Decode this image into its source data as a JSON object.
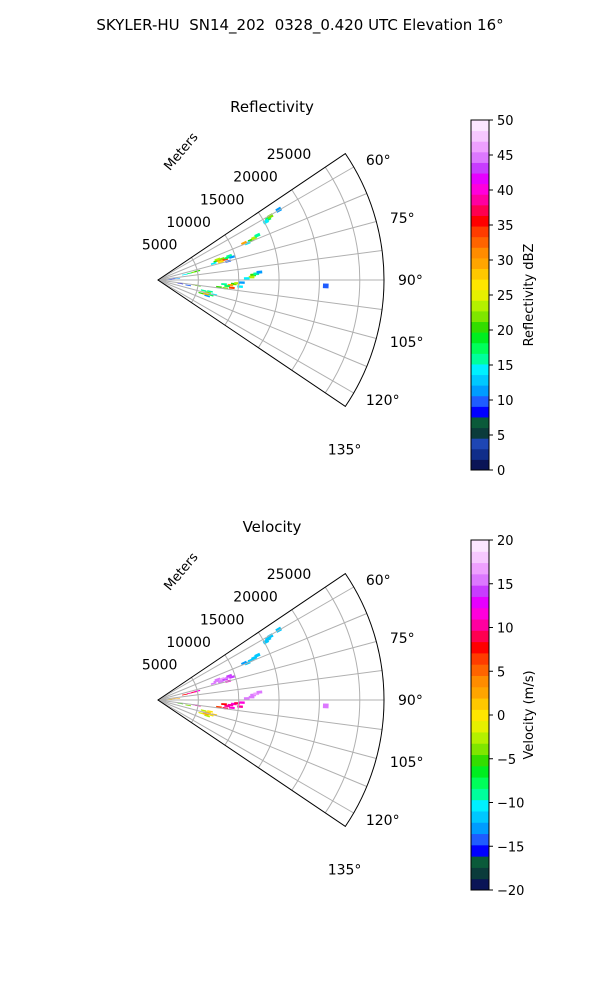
{
  "figure_title": "SKYLER-HU  SN14_202  0328_0.420 UTC Elevation 16°",
  "chart_data": [
    {
      "type": "polar-sector",
      "title": "Reflectivity",
      "radial_label": "Meters",
      "r_ticks": [
        "5000",
        "10000",
        "15000",
        "20000",
        "25000"
      ],
      "r_max": 28000,
      "azimuth_ticks": [
        "60°",
        "75°",
        "90°",
        "105°",
        "120°",
        "135°"
      ],
      "azimuth_range_deg": [
        56,
        124
      ],
      "colorbar": {
        "label": "Reflectivity dBZ",
        "range": [
          0,
          50
        ],
        "ticks": [
          "0",
          "5",
          "10",
          "15",
          "20",
          "25",
          "30",
          "35",
          "40",
          "45",
          "50"
        ],
        "colors": [
          "#0a1456",
          "#102e8a",
          "#1e46b4",
          "#0b3b3b",
          "#0a5a3a",
          "#0000ff",
          "#1f5cff",
          "#009cff",
          "#00c8ff",
          "#00f0ff",
          "#00ff9c",
          "#00ff5a",
          "#00ee20",
          "#33dd00",
          "#7fe600",
          "#b4f000",
          "#e6f000",
          "#ffe600",
          "#ffc800",
          "#ffa500",
          "#ff8c00",
          "#ff6400",
          "#ff3c00",
          "#ff0000",
          "#ff0050",
          "#ff00a0",
          "#ff00dc",
          "#e600ff",
          "#c83cff",
          "#dc78ff",
          "#eea0ff",
          "#f6c8ff",
          "#fbe6ff"
        ]
      },
      "cells": [
        {
          "az": 72.0,
          "r": 7600,
          "v": 20
        },
        {
          "az": 72.4,
          "r": 8000,
          "v": 30
        },
        {
          "az": 71.6,
          "r": 8300,
          "v": 22
        },
        {
          "az": 73.0,
          "r": 8700,
          "v": 34
        },
        {
          "az": 72.2,
          "r": 9000,
          "v": 18
        },
        {
          "az": 73.4,
          "r": 7200,
          "v": 14
        },
        {
          "az": 71.2,
          "r": 9300,
          "v": 16
        },
        {
          "az": 74.0,
          "r": 8100,
          "v": 26
        },
        {
          "az": 70.8,
          "r": 7800,
          "v": 24
        },
        {
          "az": 72.8,
          "r": 9600,
          "v": 12
        },
        {
          "az": 67.0,
          "r": 12500,
          "v": 20
        },
        {
          "az": 66.4,
          "r": 13000,
          "v": 24
        },
        {
          "az": 67.6,
          "r": 12000,
          "v": 14
        },
        {
          "az": 65.8,
          "r": 13500,
          "v": 16
        },
        {
          "az": 66.8,
          "r": 11600,
          "v": 30
        },
        {
          "az": 61.0,
          "r": 15600,
          "v": 18
        },
        {
          "az": 60.4,
          "r": 16000,
          "v": 22
        },
        {
          "az": 61.6,
          "r": 15200,
          "v": 14
        },
        {
          "az": 59.8,
          "r": 17300,
          "v": 12
        },
        {
          "az": 78.0,
          "r": 4000,
          "v": 18
        },
        {
          "az": 77.6,
          "r": 4600,
          "v": 22
        },
        {
          "az": 78.6,
          "r": 3400,
          "v": 14
        },
        {
          "az": 77.2,
          "r": 5000,
          "v": 20
        },
        {
          "az": 86.0,
          "r": 1800,
          "v": 8
        },
        {
          "az": 85.4,
          "r": 2400,
          "v": 12
        },
        {
          "az": 86.6,
          "r": 1400,
          "v": 10
        },
        {
          "az": 75.0,
          "r": 9000,
          "v": 10
        },
        {
          "az": 87.0,
          "r": 11800,
          "v": 20
        },
        {
          "az": 88.2,
          "r": 11600,
          "v": 24
        },
        {
          "az": 86.4,
          "r": 12200,
          "v": 16
        },
        {
          "az": 89.0,
          "r": 11000,
          "v": 14
        },
        {
          "az": 85.6,
          "r": 12600,
          "v": 12
        },
        {
          "az": 93.0,
          "r": 9400,
          "v": 20
        },
        {
          "az": 94.0,
          "r": 9000,
          "v": 30
        },
        {
          "az": 92.4,
          "r": 9800,
          "v": 24
        },
        {
          "az": 95.0,
          "r": 8600,
          "v": 18
        },
        {
          "az": 93.6,
          "r": 8200,
          "v": 16
        },
        {
          "az": 96.0,
          "r": 9200,
          "v": 34
        },
        {
          "az": 97.0,
          "r": 8400,
          "v": 22
        },
        {
          "az": 94.6,
          "r": 10200,
          "v": 14
        },
        {
          "az": 91.8,
          "r": 10400,
          "v": 12
        },
        {
          "az": 96.6,
          "r": 7600,
          "v": 20
        },
        {
          "az": 104.0,
          "r": 6400,
          "v": 22
        },
        {
          "az": 105.0,
          "r": 6000,
          "v": 24
        },
        {
          "az": 106.0,
          "r": 6800,
          "v": 18
        },
        {
          "az": 103.0,
          "r": 5800,
          "v": 16
        },
        {
          "az": 107.0,
          "r": 5600,
          "v": 20
        },
        {
          "az": 104.6,
          "r": 7200,
          "v": 14
        },
        {
          "az": 106.6,
          "r": 6200,
          "v": 30
        },
        {
          "az": 108.0,
          "r": 6400,
          "v": 12
        },
        {
          "az": 102.4,
          "r": 6600,
          "v": 16
        },
        {
          "az": 100.0,
          "r": 3800,
          "v": 10
        },
        {
          "az": 99.0,
          "r": 2800,
          "v": 8
        },
        {
          "az": 98.0,
          "r": 5000,
          "v": 20
        },
        {
          "az": 97.6,
          "r": 4600,
          "v": 24
        },
        {
          "az": 92.0,
          "r": 20800,
          "v": 10
        }
      ]
    },
    {
      "type": "polar-sector",
      "title": "Velocity",
      "radial_label": "Meters",
      "r_ticks": [
        "5000",
        "10000",
        "15000",
        "20000",
        "25000"
      ],
      "r_max": 28000,
      "azimuth_ticks": [
        "60°",
        "75°",
        "90°",
        "105°",
        "120°",
        "135°"
      ],
      "azimuth_range_deg": [
        56,
        124
      ],
      "colorbar": {
        "label": "Velocity (m/s)",
        "range": [
          -20,
          20
        ],
        "ticks": [
          "−20",
          "−15",
          "−10",
          "−5",
          "0",
          "5",
          "10",
          "15",
          "20"
        ],
        "colors": [
          "#0a1456",
          "#0b3b3b",
          "#0a5a3a",
          "#0000ff",
          "#1f5cff",
          "#009cff",
          "#00c8ff",
          "#00f0ff",
          "#00ff9c",
          "#00ff5a",
          "#00ee20",
          "#33dd00",
          "#7fe600",
          "#b4f000",
          "#e6f000",
          "#ffe600",
          "#ffc800",
          "#ffa500",
          "#ff8c00",
          "#ff6400",
          "#ff3c00",
          "#ff0000",
          "#ff0050",
          "#ff00a0",
          "#ff00dc",
          "#e600ff",
          "#c83cff",
          "#dc78ff",
          "#eea0ff",
          "#f6c8ff",
          "#fbe6ff"
        ]
      },
      "cells": [
        {
          "az": 72.0,
          "r": 7600,
          "v": 16
        },
        {
          "az": 72.4,
          "r": 8000,
          "v": 15
        },
        {
          "az": 71.6,
          "r": 8300,
          "v": 17
        },
        {
          "az": 73.0,
          "r": 8700,
          "v": 14
        },
        {
          "az": 72.2,
          "r": 9000,
          "v": 16
        },
        {
          "az": 73.4,
          "r": 7200,
          "v": 15
        },
        {
          "az": 71.2,
          "r": 9300,
          "v": 14
        },
        {
          "az": 74.0,
          "r": 8100,
          "v": 16
        },
        {
          "az": 70.8,
          "r": 7800,
          "v": 15
        },
        {
          "az": 72.8,
          "r": 9600,
          "v": 14
        },
        {
          "az": 67.0,
          "r": 12500,
          "v": -12
        },
        {
          "az": 66.4,
          "r": 13000,
          "v": -11
        },
        {
          "az": 67.6,
          "r": 12000,
          "v": -12
        },
        {
          "az": 65.8,
          "r": 13500,
          "v": -11
        },
        {
          "az": 66.8,
          "r": 11600,
          "v": -13
        },
        {
          "az": 61.0,
          "r": 15600,
          "v": -12
        },
        {
          "az": 60.4,
          "r": 16000,
          "v": -11
        },
        {
          "az": 61.6,
          "r": 15200,
          "v": -12
        },
        {
          "az": 59.8,
          "r": 17300,
          "v": -11
        },
        {
          "az": 78.0,
          "r": 4000,
          "v": 10
        },
        {
          "az": 77.6,
          "r": 4600,
          "v": 9
        },
        {
          "az": 78.6,
          "r": 3400,
          "v": 8
        },
        {
          "az": 77.2,
          "r": 5000,
          "v": 11
        },
        {
          "az": 86.0,
          "r": 1800,
          "v": 2
        },
        {
          "az": 85.4,
          "r": 2400,
          "v": 3
        },
        {
          "az": 86.6,
          "r": 1400,
          "v": 1
        },
        {
          "az": 75.0,
          "r": 9000,
          "v": 12
        },
        {
          "az": 87.0,
          "r": 11800,
          "v": 16
        },
        {
          "az": 88.2,
          "r": 11600,
          "v": 15
        },
        {
          "az": 86.4,
          "r": 12200,
          "v": 17
        },
        {
          "az": 89.0,
          "r": 11000,
          "v": 16
        },
        {
          "az": 85.6,
          "r": 12600,
          "v": 15
        },
        {
          "az": 93.0,
          "r": 9400,
          "v": 11
        },
        {
          "az": 94.0,
          "r": 9000,
          "v": 10
        },
        {
          "az": 92.4,
          "r": 9800,
          "v": 9
        },
        {
          "az": 95.0,
          "r": 8600,
          "v": 10
        },
        {
          "az": 93.6,
          "r": 8200,
          "v": 8
        },
        {
          "az": 96.0,
          "r": 9200,
          "v": 11
        },
        {
          "az": 97.0,
          "r": 8400,
          "v": 9
        },
        {
          "az": 94.6,
          "r": 10200,
          "v": 10
        },
        {
          "az": 91.8,
          "r": 10400,
          "v": 12
        },
        {
          "az": 96.6,
          "r": 7600,
          "v": 7
        },
        {
          "az": 104.0,
          "r": 6400,
          "v": 1
        },
        {
          "az": 105.0,
          "r": 6000,
          "v": 2
        },
        {
          "az": 106.0,
          "r": 6800,
          "v": 0
        },
        {
          "az": 103.0,
          "r": 5800,
          "v": -2
        },
        {
          "az": 107.0,
          "r": 5600,
          "v": -1
        },
        {
          "az": 104.6,
          "r": 7200,
          "v": 1
        },
        {
          "az": 106.6,
          "r": 6200,
          "v": 3
        },
        {
          "az": 108.0,
          "r": 6400,
          "v": -3
        },
        {
          "az": 102.4,
          "r": 6600,
          "v": 0
        },
        {
          "az": 100.0,
          "r": 3800,
          "v": -4
        },
        {
          "az": 99.0,
          "r": 2800,
          "v": -5
        },
        {
          "az": 98.0,
          "r": 5000,
          "v": 10
        },
        {
          "az": 97.6,
          "r": 4600,
          "v": 11
        },
        {
          "az": 92.0,
          "r": 20800,
          "v": 16
        }
      ]
    }
  ]
}
